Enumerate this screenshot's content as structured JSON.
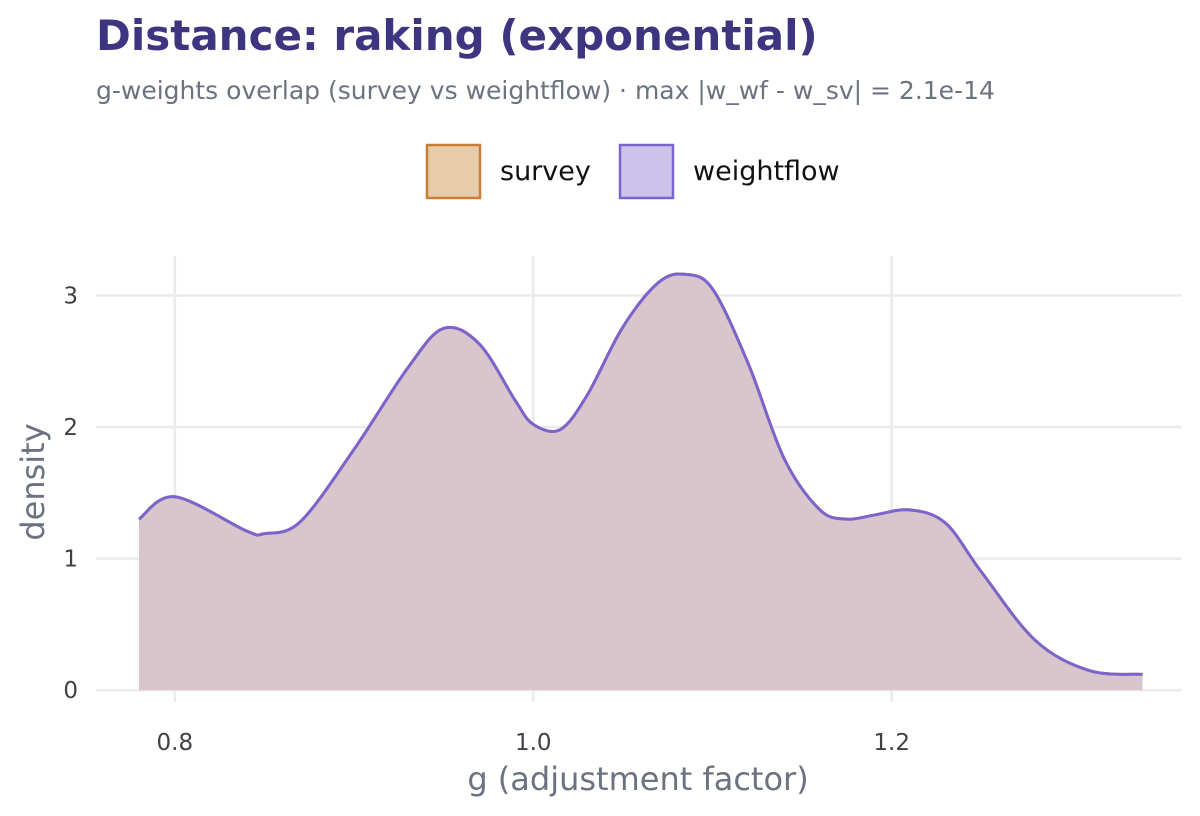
{
  "chart_data": {
    "type": "area",
    "title": "Distance: raking (exponential)",
    "subtitle": "g-weights overlap (survey vs weightflow) · max |w_wf - w_sv| = 2.1e-14",
    "xlabel": "g (adjustment factor)",
    "ylabel": "density",
    "xlim": [
      0.756,
      1.362
    ],
    "ylim": [
      -0.09,
      3.3
    ],
    "x_ticks": [
      {
        "value": 0.8,
        "label": "0.8"
      },
      {
        "value": 1.0,
        "label": "1.0"
      },
      {
        "value": 1.2,
        "label": "1.2"
      }
    ],
    "y_ticks": [
      {
        "value": 0,
        "label": "0"
      },
      {
        "value": 1,
        "label": "1"
      },
      {
        "value": 2,
        "label": "2"
      },
      {
        "value": 3,
        "label": "3"
      }
    ],
    "grid": true,
    "legend": {
      "position": "top-center"
    },
    "series": [
      {
        "name": "survey",
        "fill": "#e8cba9",
        "stroke": "#c87f35",
        "x": [
          0.78,
          0.8,
          0.84,
          0.85,
          0.87,
          0.9,
          0.93,
          0.95,
          0.97,
          0.99,
          1.0,
          1.015,
          1.03,
          1.05,
          1.07,
          1.085,
          1.1,
          1.12,
          1.14,
          1.16,
          1.175,
          1.19,
          1.21,
          1.23,
          1.25,
          1.28,
          1.31,
          1.34
        ],
        "y": [
          1.3,
          1.47,
          1.21,
          1.19,
          1.28,
          1.83,
          2.45,
          2.75,
          2.63,
          2.2,
          2.02,
          1.98,
          2.24,
          2.76,
          3.1,
          3.16,
          3.05,
          2.48,
          1.76,
          1.37,
          1.3,
          1.33,
          1.37,
          1.27,
          0.9,
          0.38,
          0.15,
          0.12
        ]
      },
      {
        "name": "weightflow",
        "fill": "#cbc3ea",
        "stroke": "#7b65cd",
        "x": [
          0.78,
          0.8,
          0.84,
          0.85,
          0.87,
          0.9,
          0.93,
          0.95,
          0.97,
          0.99,
          1.0,
          1.015,
          1.03,
          1.05,
          1.07,
          1.085,
          1.1,
          1.12,
          1.14,
          1.16,
          1.175,
          1.19,
          1.21,
          1.23,
          1.25,
          1.28,
          1.31,
          1.34
        ],
        "y": [
          1.3,
          1.47,
          1.21,
          1.19,
          1.28,
          1.83,
          2.45,
          2.75,
          2.63,
          2.2,
          2.02,
          1.98,
          2.24,
          2.76,
          3.1,
          3.16,
          3.05,
          2.48,
          1.76,
          1.37,
          1.3,
          1.33,
          1.37,
          1.27,
          0.9,
          0.38,
          0.15,
          0.12
        ]
      }
    ],
    "colors": {
      "title": "#3d3580",
      "overlap_fill": "#b9a3b9",
      "grid": "#ebebeb"
    }
  }
}
